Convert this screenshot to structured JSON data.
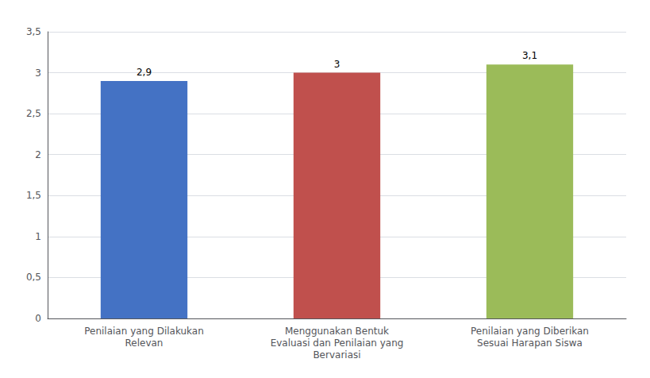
{
  "chart_data": {
    "type": "bar",
    "categories": [
      "Penilaian yang Dilakukan\nRelevan",
      "Menggunakan Bentuk\nEvaluasi dan Penilaian yang\nBervariasi",
      "Penilaian yang Diberikan\nSesuai Harapan Siswa"
    ],
    "values": [
      2.9,
      3.0,
      3.1
    ],
    "value_labels": [
      "2,9",
      "3",
      "3,1"
    ],
    "data_labels": true,
    "colors": [
      "#4472C4",
      "#C0504D",
      "#9BBB59"
    ],
    "ylim": [
      0,
      3.5
    ],
    "yticks": [
      0,
      {
        "value": 0.5,
        "label": "0,5"
      },
      1,
      {
        "value": 1.5,
        "label": "1,5"
      },
      2,
      {
        "value": 2.5,
        "label": "2,5"
      },
      3,
      {
        "value": 3.5,
        "label": "3,5"
      }
    ],
    "grid": true
  }
}
